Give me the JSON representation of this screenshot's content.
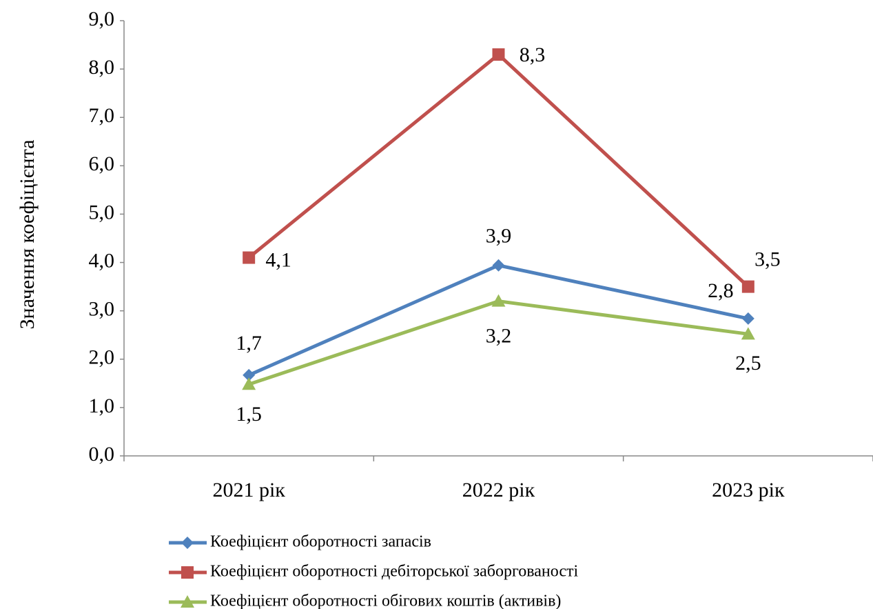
{
  "chart_data": {
    "type": "line",
    "y_label": "Значення коефіцієнта",
    "categories": [
      "2021 рік",
      "2022 рік",
      "2023 рік"
    ],
    "series": [
      {
        "name": "Коефіцієнт оборотності запасів",
        "color": "#4f81bd",
        "marker": "diamond",
        "values": [
          1.67,
          3.94,
          2.84
        ],
        "value_labels": [
          "1,7",
          "3,9",
          "2,8"
        ]
      },
      {
        "name": "Коефіцієнт оборотності дебіторської заборгованості",
        "color": "#c0504d",
        "marker": "square",
        "values": [
          4.1,
          8.3,
          3.5
        ],
        "value_labels": [
          "4,1",
          "8,3",
          "3,5"
        ]
      },
      {
        "name": "Коефіцієнт оборотності обігових коштів (активів)",
        "color": "#9bbb59",
        "marker": "triangle",
        "values": [
          1.48,
          3.2,
          2.52
        ],
        "value_labels": [
          "1,5",
          "3,2",
          "2,5"
        ]
      }
    ],
    "ylim": [
      0,
      9
    ],
    "yticks": [
      {
        "value": 0,
        "label": "0,0"
      },
      {
        "value": 1,
        "label": "1,0"
      },
      {
        "value": 2,
        "label": "2,0"
      },
      {
        "value": 3,
        "label": "3,0"
      },
      {
        "value": 4,
        "label": "4,0"
      },
      {
        "value": 5,
        "label": "5,0"
      },
      {
        "value": 6,
        "label": "6,0"
      },
      {
        "value": 7,
        "label": "7,0"
      },
      {
        "value": 8,
        "label": "8,0"
      },
      {
        "value": 9,
        "label": "9,0"
      }
    ],
    "grid": false,
    "legend": "bottom"
  }
}
